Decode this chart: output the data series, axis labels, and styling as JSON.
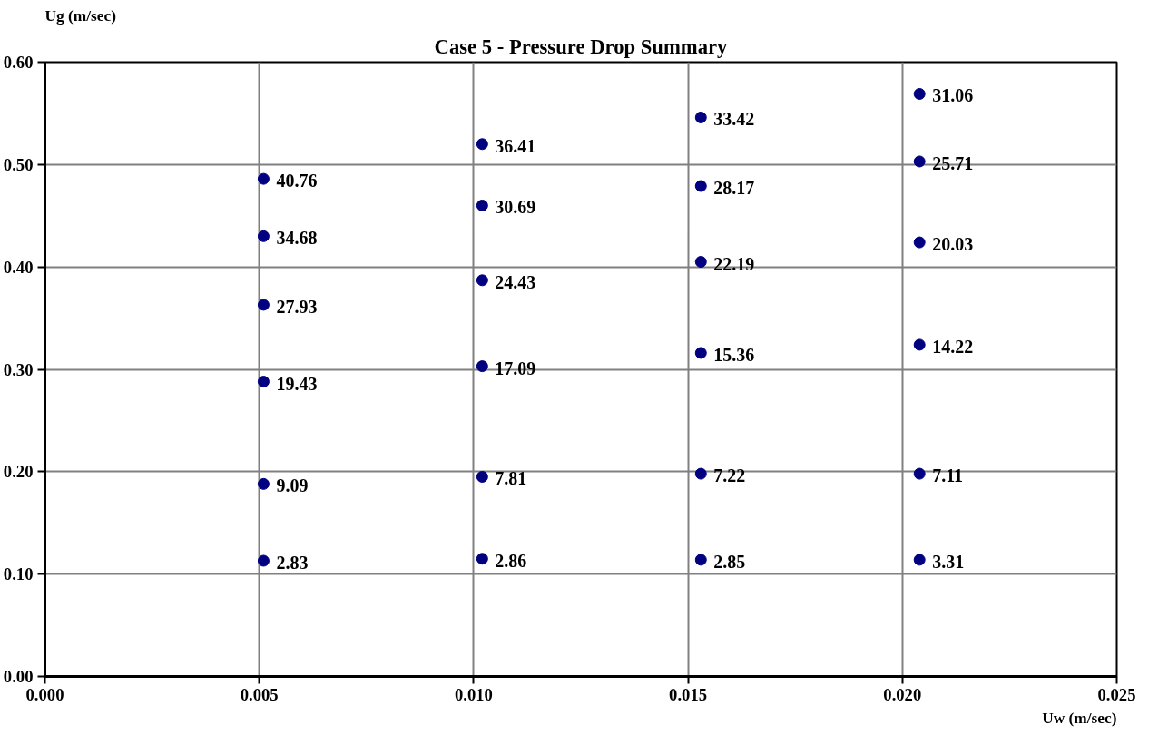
{
  "chart_data": {
    "type": "scatter",
    "title": "Case 5 - Pressure Drop Summary",
    "xlabel": "Uw (m/sec)",
    "ylabel": "Ug (m/sec)",
    "x": [
      0.0051,
      0.0051,
      0.0051,
      0.0051,
      0.0051,
      0.0051,
      0.0102,
      0.0102,
      0.0102,
      0.0102,
      0.0102,
      0.0102,
      0.0153,
      0.0153,
      0.0153,
      0.0153,
      0.0153,
      0.0153,
      0.0204,
      0.0204,
      0.0204,
      0.0204,
      0.0204,
      0.0204
    ],
    "series": [
      {
        "color": "#000080",
        "values": [
          0.486,
          0.43,
          0.363,
          0.288,
          0.188,
          0.113,
          0.52,
          0.46,
          0.387,
          0.303,
          0.195,
          0.115,
          0.546,
          0.479,
          0.405,
          0.316,
          0.198,
          0.114,
          0.569,
          0.503,
          0.424,
          0.324,
          0.198,
          0.114
        ]
      }
    ],
    "annotations": [
      {
        "text": "40.76",
        "x": 0.0051,
        "y": 0.486
      },
      {
        "text": "34.68",
        "x": 0.0051,
        "y": 0.43
      },
      {
        "text": "27.93",
        "x": 0.0051,
        "y": 0.363
      },
      {
        "text": "19.43",
        "x": 0.0051,
        "y": 0.288
      },
      {
        "text": "9.09",
        "x": 0.0051,
        "y": 0.188
      },
      {
        "text": "2.83",
        "x": 0.0051,
        "y": 0.113
      },
      {
        "text": "36.41",
        "x": 0.0102,
        "y": 0.52
      },
      {
        "text": "30.69",
        "x": 0.0102,
        "y": 0.46
      },
      {
        "text": "24.43",
        "x": 0.0102,
        "y": 0.387
      },
      {
        "text": "17.09",
        "x": 0.0102,
        "y": 0.303
      },
      {
        "text": "7.81",
        "x": 0.0102,
        "y": 0.195
      },
      {
        "text": "2.86",
        "x": 0.0102,
        "y": 0.115
      },
      {
        "text": "33.42",
        "x": 0.0153,
        "y": 0.546
      },
      {
        "text": "28.17",
        "x": 0.0153,
        "y": 0.479
      },
      {
        "text": "22.19",
        "x": 0.0153,
        "y": 0.405
      },
      {
        "text": "15.36",
        "x": 0.0153,
        "y": 0.316
      },
      {
        "text": "7.22",
        "x": 0.0153,
        "y": 0.198
      },
      {
        "text": "2.85",
        "x": 0.0153,
        "y": 0.114
      },
      {
        "text": "31.06",
        "x": 0.0204,
        "y": 0.569
      },
      {
        "text": "25.71",
        "x": 0.0204,
        "y": 0.503
      },
      {
        "text": "20.03",
        "x": 0.0204,
        "y": 0.424
      },
      {
        "text": "14.22",
        "x": 0.0204,
        "y": 0.324
      },
      {
        "text": "7.11",
        "x": 0.0204,
        "y": 0.198
      },
      {
        "text": "3.31",
        "x": 0.0204,
        "y": 0.114
      }
    ],
    "xlim": [
      0,
      0.025
    ],
    "ylim": [
      0,
      0.6
    ],
    "xticks": [
      {
        "value": 0,
        "label": "0.000"
      },
      {
        "value": 0.005,
        "label": "0.005"
      },
      {
        "value": 0.01,
        "label": "0.010"
      },
      {
        "value": 0.015,
        "label": "0.015"
      },
      {
        "value": 0.02,
        "label": "0.020"
      },
      {
        "value": 0.025,
        "label": "0.025"
      }
    ],
    "yticks": [
      {
        "value": 0,
        "label": "0.00"
      },
      {
        "value": 0.1,
        "label": "0.10"
      },
      {
        "value": 0.2,
        "label": "0.20"
      },
      {
        "value": 0.3,
        "label": "0.30"
      },
      {
        "value": 0.4,
        "label": "0.40"
      },
      {
        "value": 0.5,
        "label": "0.50"
      },
      {
        "value": 0.6,
        "label": "0.60"
      }
    ],
    "grid": true,
    "marker": "circle"
  }
}
